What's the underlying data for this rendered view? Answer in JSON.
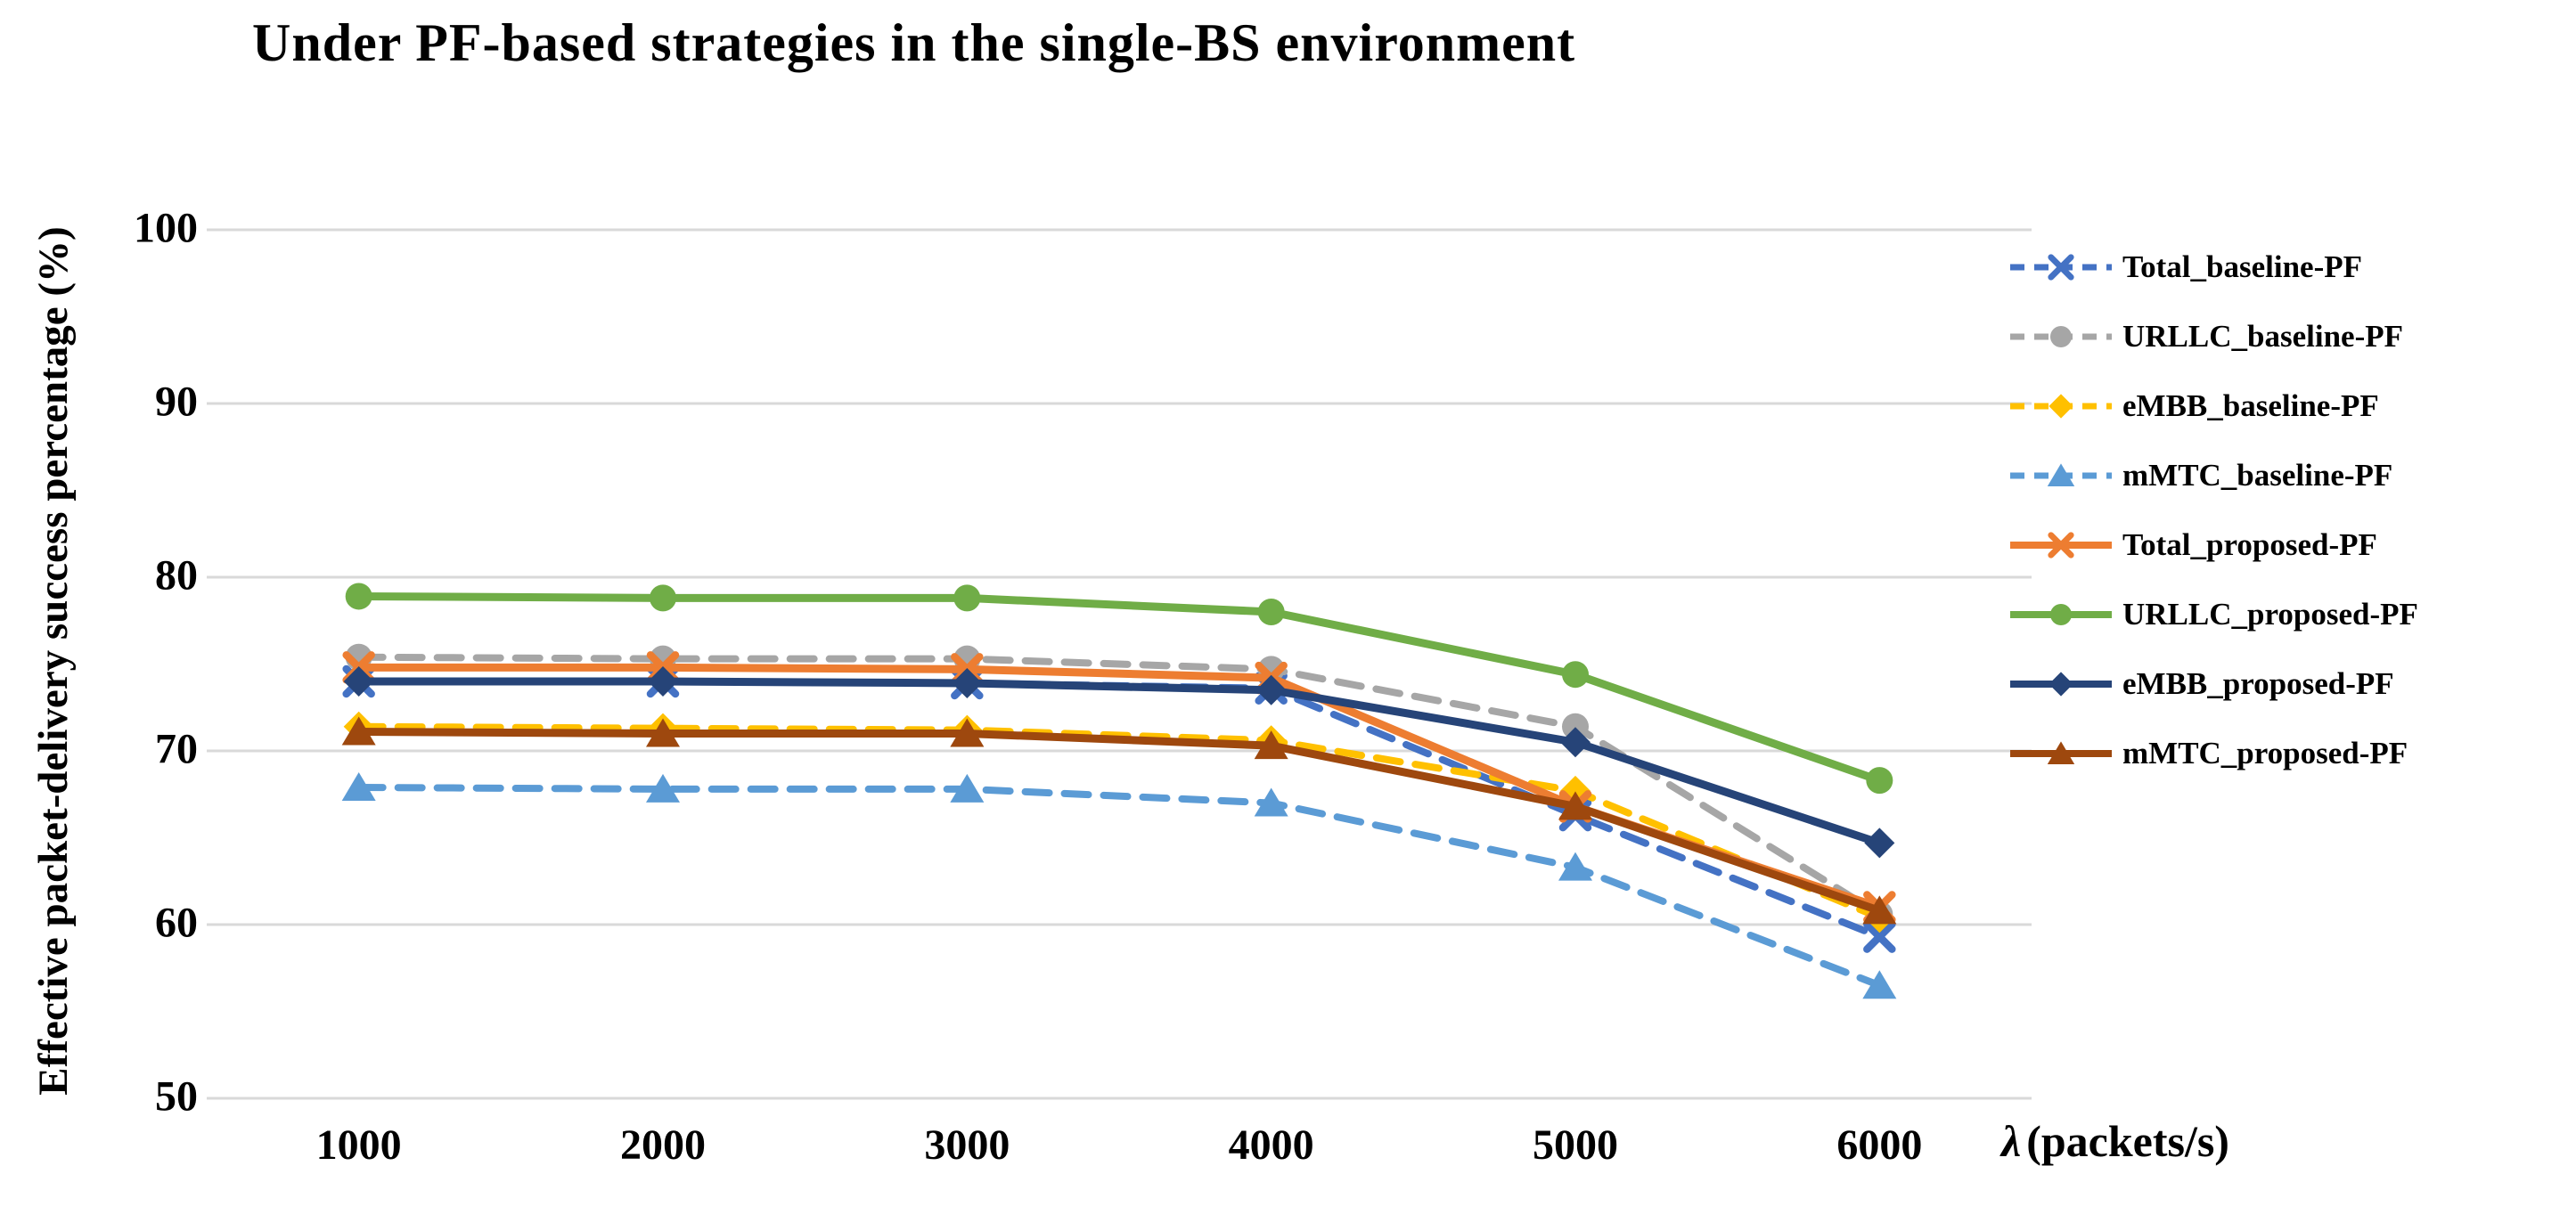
{
  "figure": {
    "title": "Under PF-based strategies in the single-BS environment",
    "y_axis_title": "Effective packet-delivery success percentage (%)",
    "x_axis_lambda": "λ",
    "x_axis_unit": "(packets/s)"
  },
  "chart_data": {
    "type": "line",
    "title": "Under PF-based strategies in the single-BS environment",
    "xlabel": "λ (packets/s)",
    "ylabel": "Effective packet-delivery success percentage (%)",
    "categories": [
      1000,
      2000,
      3000,
      4000,
      5000,
      6000
    ],
    "x_tick_labels": [
      "1000",
      "2000",
      "3000",
      "4000",
      "5000",
      "6000"
    ],
    "y_ticks": [
      100,
      90,
      80,
      70,
      60,
      50
    ],
    "ylim": [
      50,
      100
    ],
    "grid": true,
    "gridline_color": "#d9d9d9",
    "legend_position": "right",
    "series": [
      {
        "name": "Total_baseline-PF",
        "color": "#4472C4",
        "line_style": "dashed",
        "marker": "x-cross",
        "values": [
          74.0,
          74.0,
          73.9,
          73.6,
          66.3,
          59.3
        ]
      },
      {
        "name": "URLLC_baseline-PF",
        "color": "#A6A6A6",
        "line_style": "dashed",
        "marker": "circle",
        "values": [
          75.4,
          75.3,
          75.3,
          74.7,
          71.4,
          60.6
        ]
      },
      {
        "name": "eMBB_baseline-PF",
        "color": "#FFC000",
        "line_style": "dashed",
        "marker": "diamond",
        "values": [
          71.4,
          71.3,
          71.2,
          70.6,
          67.7,
          60.4
        ]
      },
      {
        "name": "mMTC_baseline-PF",
        "color": "#5B9BD5",
        "line_style": "dashed",
        "marker": "triangle",
        "values": [
          67.9,
          67.8,
          67.8,
          67.0,
          63.3,
          56.5
        ]
      },
      {
        "name": "Total_proposed-PF",
        "color": "#ED7D31",
        "line_style": "solid",
        "marker": "x-cross",
        "values": [
          74.8,
          74.8,
          74.7,
          74.2,
          66.8,
          61.0
        ]
      },
      {
        "name": "URLLC_proposed-PF",
        "color": "#70AD47",
        "line_style": "solid",
        "marker": "circle",
        "values": [
          78.9,
          78.8,
          78.8,
          78.0,
          74.4,
          68.3
        ]
      },
      {
        "name": "eMBB_proposed-PF",
        "color": "#264478",
        "line_style": "solid",
        "marker": "diamond",
        "values": [
          74.0,
          74.0,
          73.9,
          73.5,
          70.5,
          64.7
        ]
      },
      {
        "name": "mMTC_proposed-PF",
        "color": "#9E480E",
        "line_style": "solid",
        "marker": "triangle",
        "values": [
          71.1,
          71.0,
          71.0,
          70.3,
          66.8,
          60.8
        ]
      }
    ]
  }
}
